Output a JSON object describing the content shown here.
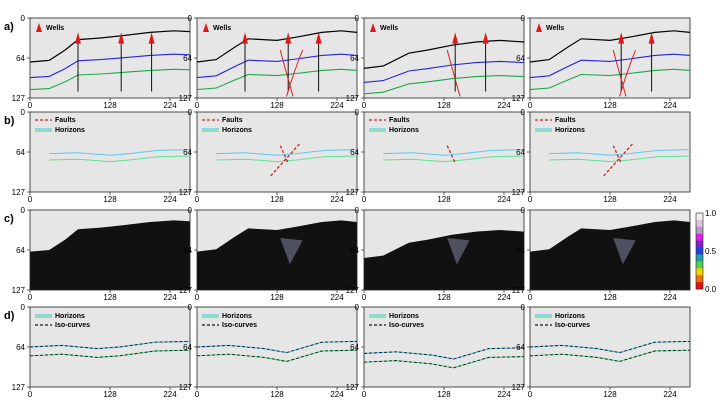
{
  "row_labels": [
    "a)",
    "b)",
    "c)",
    "d)"
  ],
  "axis": {
    "x_ticks": [
      "0",
      "128",
      "224"
    ],
    "y_ticks": [
      "0",
      "64",
      "127"
    ]
  },
  "legend": {
    "wells": "Wells",
    "faults": "Faults",
    "horizons": "Horizons",
    "isocurves": "Iso-curves"
  },
  "colorbar": {
    "ticks": [
      "1.0",
      "0.5",
      "0.0"
    ]
  },
  "colors": {
    "panel_bg": "#e6e6e6",
    "horizon_a_top": "#000000",
    "horizon_a_mid": "#2424e0",
    "horizon_a_low": "#1aa84a",
    "well": "#e11818",
    "fault": "#d42020",
    "horizon_b_1": "#5ac8f0",
    "horizon_b_2": "#5ee09a",
    "isocurve": "#1a1a1a"
  },
  "models": [
    {
      "surface": "flat",
      "faults": "none",
      "wells": 3
    },
    {
      "surface": "hill",
      "faults": "two",
      "wells": 3
    },
    {
      "surface": "hill-shift",
      "faults": "one",
      "wells": 2
    },
    {
      "surface": "hill",
      "faults": "cross",
      "wells": 2
    }
  ]
}
